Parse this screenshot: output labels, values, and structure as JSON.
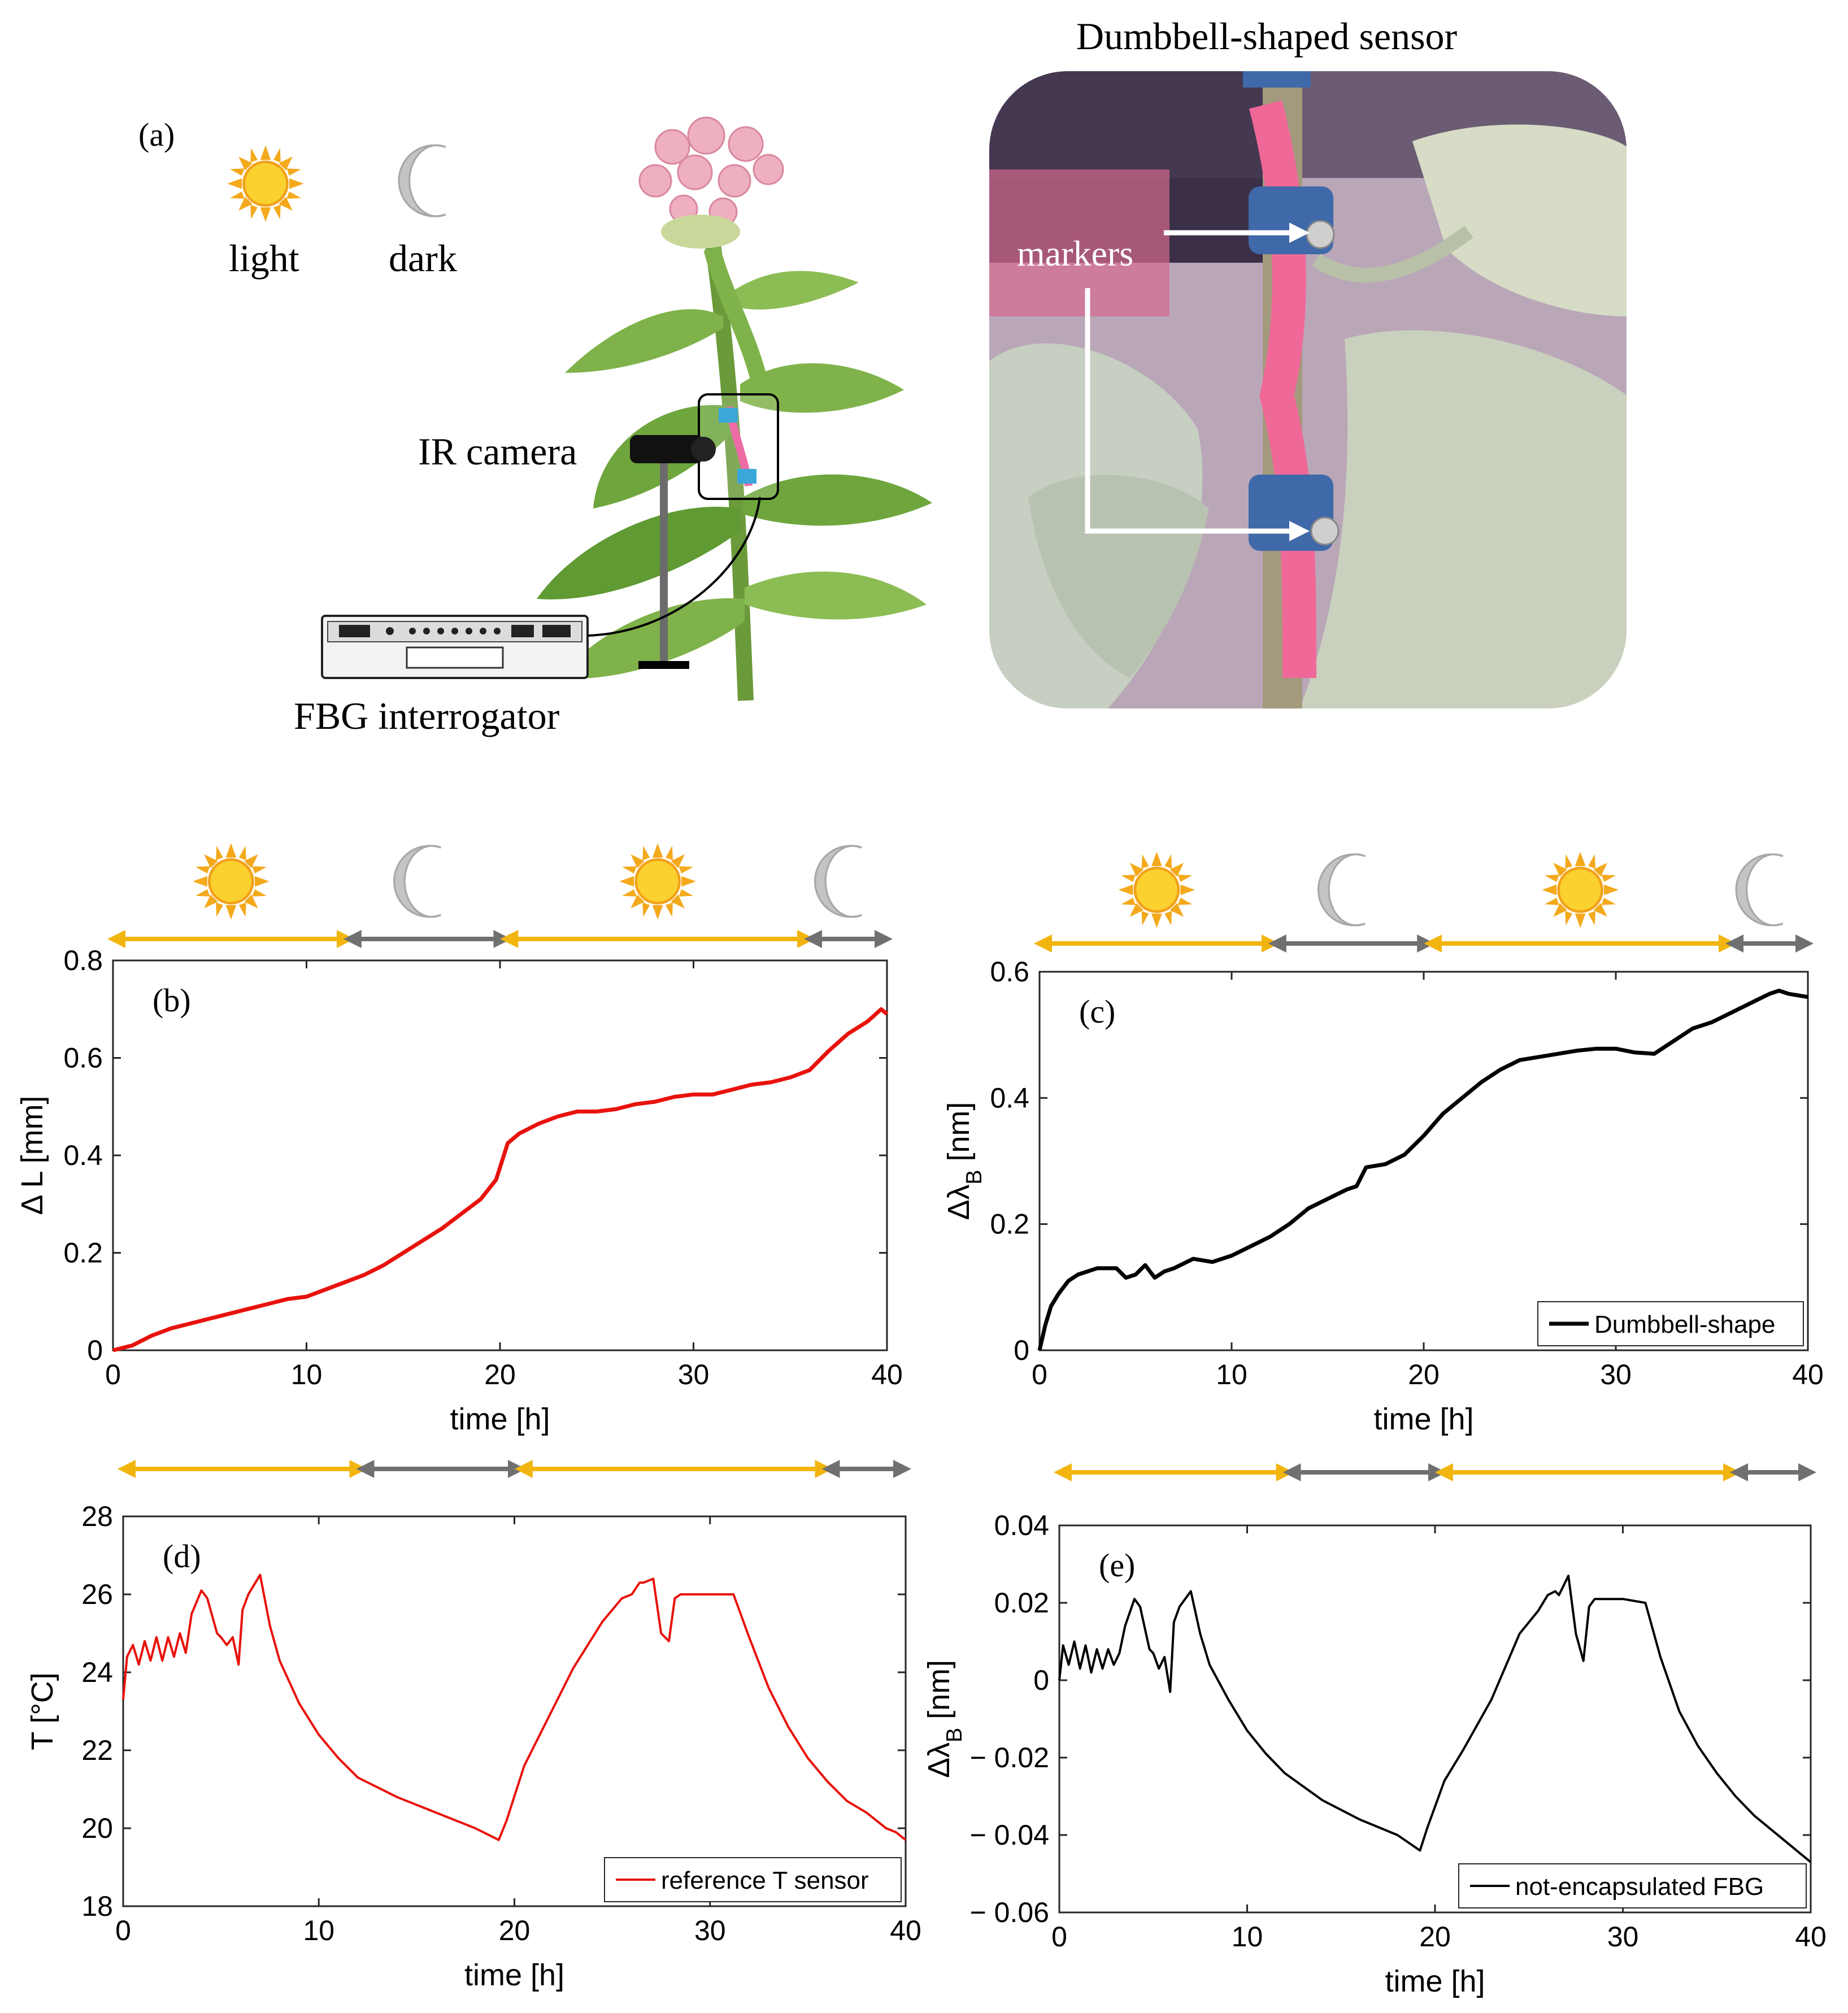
{
  "panel_a": {
    "label": "(a)",
    "light_label": "light",
    "dark_label": "dark",
    "camera_label": "IR camera",
    "interrogator_label": "FBG interrogator",
    "photo_title": "Dumbbell-shaped sensor",
    "markers_label": "markers"
  },
  "colors": {
    "light_arrow": "#f2b50f",
    "dark_arrow": "#707070",
    "red_trace": "#e8120c",
    "black_trace": "#000000"
  },
  "chart_data": [
    {
      "id": "b",
      "label": "(b)",
      "type": "line",
      "xlabel": "time [h]",
      "ylabel": "Δ L [mm]",
      "xlim": [
        0,
        40
      ],
      "ylim": [
        0,
        0.8
      ],
      "xticks": [
        0,
        10,
        20,
        30,
        40
      ],
      "yticks": [
        0,
        0.2,
        0.4,
        0.6,
        0.8
      ],
      "ytick_labels": [
        "0",
        "0.2",
        "0.4",
        "0.6",
        "0.8"
      ],
      "legend": null,
      "series": [
        {
          "name": "Δ L",
          "color": "#e8120c",
          "x": [
            0,
            1,
            2,
            3,
            4,
            5,
            6,
            7,
            8,
            9,
            10,
            11,
            12,
            13,
            14,
            15,
            16,
            17,
            18,
            19,
            19.8,
            20.4,
            21,
            22,
            23,
            24,
            25,
            26,
            27,
            28,
            29,
            30,
            31,
            32,
            33,
            34,
            35,
            36,
            37,
            38,
            39,
            39.7,
            40
          ],
          "y": [
            0,
            0.01,
            0.03,
            0.045,
            0.055,
            0.065,
            0.075,
            0.085,
            0.095,
            0.105,
            0.11,
            0.125,
            0.14,
            0.155,
            0.175,
            0.2,
            0.225,
            0.25,
            0.28,
            0.31,
            0.35,
            0.425,
            0.445,
            0.465,
            0.48,
            0.49,
            0.49,
            0.495,
            0.505,
            0.51,
            0.52,
            0.525,
            0.525,
            0.535,
            0.545,
            0.55,
            0.56,
            0.575,
            0.615,
            0.65,
            0.675,
            0.7,
            0.69
          ]
        }
      ]
    },
    {
      "id": "c",
      "label": "(c)",
      "type": "line",
      "xlabel": "time [h]",
      "ylabel": "Δλ_B [nm]",
      "xlim": [
        0,
        40
      ],
      "ylim": [
        0,
        0.6
      ],
      "xticks": [
        0,
        10,
        20,
        30,
        40
      ],
      "yticks": [
        0,
        0.2,
        0.4,
        0.6
      ],
      "ytick_labels": [
        "0",
        "0.2",
        "0.4",
        "0.6"
      ],
      "legend": "Dumbbell-shape",
      "series": [
        {
          "name": "Dumbbell-shape",
          "color": "#000000",
          "x": [
            0,
            0.3,
            0.6,
            1,
            1.5,
            2,
            3,
            4,
            4.5,
            5,
            5.5,
            6,
            6.5,
            7,
            8,
            9,
            10,
            11,
            12,
            13,
            14,
            15,
            16,
            16.5,
            17,
            18,
            19,
            20,
            21,
            22,
            23,
            24,
            25,
            26,
            27,
            28,
            29,
            30,
            31,
            32,
            33,
            34,
            35,
            36,
            37,
            38,
            38.5,
            39,
            40
          ],
          "y": [
            0,
            0.04,
            0.07,
            0.09,
            0.11,
            0.12,
            0.13,
            0.13,
            0.115,
            0.12,
            0.135,
            0.115,
            0.125,
            0.13,
            0.145,
            0.14,
            0.15,
            0.165,
            0.18,
            0.2,
            0.225,
            0.24,
            0.255,
            0.26,
            0.29,
            0.295,
            0.31,
            0.34,
            0.375,
            0.4,
            0.425,
            0.445,
            0.46,
            0.465,
            0.47,
            0.475,
            0.478,
            0.478,
            0.472,
            0.47,
            0.49,
            0.51,
            0.52,
            0.535,
            0.55,
            0.565,
            0.57,
            0.565,
            0.56
          ]
        }
      ]
    },
    {
      "id": "d",
      "label": "(d)",
      "type": "line",
      "xlabel": "time [h]",
      "ylabel": "T [°C]",
      "xlim": [
        0,
        40
      ],
      "ylim": [
        18,
        28
      ],
      "xticks": [
        0,
        10,
        20,
        30,
        40
      ],
      "yticks": [
        18,
        20,
        22,
        24,
        26,
        28
      ],
      "ytick_labels": [
        "18",
        "20",
        "22",
        "24",
        "26",
        "28"
      ],
      "legend": "reference T sensor",
      "series": [
        {
          "name": "reference T sensor",
          "color": "#e8120c",
          "x": [
            0,
            0.2,
            0.5,
            0.8,
            1.1,
            1.4,
            1.7,
            2.0,
            2.3,
            2.6,
            2.9,
            3.2,
            3.5,
            4.0,
            4.3,
            4.8,
            5.0,
            5.3,
            5.6,
            5.9,
            6.1,
            6.4,
            7.0,
            7.5,
            8,
            9,
            10,
            11,
            12,
            14,
            16,
            18,
            19.2,
            19.6,
            20.5,
            21.5,
            23,
            24.5,
            25.5,
            26,
            26.4,
            26.6,
            27.1,
            27.5,
            27.9,
            28.2,
            28.5,
            29,
            30,
            31.2,
            32,
            33,
            34,
            35,
            36,
            37,
            38,
            39,
            39.5,
            40
          ],
          "y": [
            23.3,
            24.4,
            24.7,
            24.2,
            24.8,
            24.3,
            24.9,
            24.3,
            24.9,
            24.4,
            25.0,
            24.5,
            25.5,
            26.1,
            25.9,
            25.0,
            24.9,
            24.7,
            24.9,
            24.2,
            25.6,
            26.0,
            26.5,
            25.2,
            24.3,
            23.2,
            22.4,
            21.8,
            21.3,
            20.8,
            20.4,
            20.0,
            19.7,
            20.2,
            21.6,
            22.6,
            24.1,
            25.3,
            25.9,
            26.0,
            26.3,
            26.3,
            26.4,
            25.0,
            24.8,
            25.9,
            26.0,
            26.0,
            26.0,
            26.0,
            24.9,
            23.6,
            22.6,
            21.8,
            21.2,
            20.7,
            20.4,
            20.0,
            19.9,
            19.7
          ]
        }
      ]
    },
    {
      "id": "e",
      "label": "(e)",
      "type": "line",
      "xlabel": "time [h]",
      "ylabel": "Δλ_B [nm]",
      "xlim": [
        0,
        40
      ],
      "ylim": [
        -0.06,
        0.04
      ],
      "xticks": [
        0,
        10,
        20,
        30,
        40
      ],
      "yticks": [
        -0.06,
        -0.04,
        -0.02,
        0,
        0.02,
        0.04
      ],
      "ytick_labels": [
        "− 0.06",
        "− 0.04",
        "− 0.02",
        "0",
        "0.02",
        "0.04"
      ],
      "legend": "not-encapsulated FBG",
      "series": [
        {
          "name": "not-encapsulated FBG",
          "color": "#000000",
          "x": [
            0,
            0.2,
            0.5,
            0.8,
            1.1,
            1.4,
            1.7,
            2.0,
            2.3,
            2.6,
            2.9,
            3.2,
            3.5,
            4.0,
            4.3,
            4.8,
            5.0,
            5.3,
            5.6,
            5.9,
            6.1,
            6.4,
            7.0,
            7.5,
            8,
            9,
            10,
            11,
            12,
            14,
            16,
            18,
            19.2,
            19.6,
            20.5,
            21.5,
            23,
            24.5,
            25.5,
            26,
            26.4,
            26.6,
            27.1,
            27.5,
            27.9,
            28.2,
            28.5,
            29,
            30,
            31.2,
            32,
            33,
            34,
            35,
            36,
            37,
            38,
            39,
            39.5,
            40
          ],
          "y": [
            0.0,
            0.009,
            0.004,
            0.01,
            0.003,
            0.009,
            0.002,
            0.008,
            0.003,
            0.008,
            0.004,
            0.007,
            0.014,
            0.021,
            0.019,
            0.008,
            0.007,
            0.003,
            0.006,
            -0.003,
            0.015,
            0.019,
            0.023,
            0.012,
            0.004,
            -0.005,
            -0.013,
            -0.019,
            -0.024,
            -0.031,
            -0.036,
            -0.04,
            -0.044,
            -0.038,
            -0.026,
            -0.018,
            -0.005,
            0.012,
            0.018,
            0.022,
            0.023,
            0.022,
            0.027,
            0.012,
            0.005,
            0.019,
            0.021,
            0.021,
            0.021,
            0.02,
            0.006,
            -0.008,
            -0.017,
            -0.024,
            -0.03,
            -0.035,
            -0.039,
            -0.043,
            -0.045,
            -0.047
          ]
        }
      ]
    }
  ],
  "time_bands": [
    {
      "phase": "light",
      "start": 0,
      "end": 12.2
    },
    {
      "phase": "dark",
      "start": 12.2,
      "end": 20.3
    },
    {
      "phase": "light",
      "start": 20.3,
      "end": 36.0
    },
    {
      "phase": "dark",
      "start": 36.0,
      "end": 40
    }
  ]
}
